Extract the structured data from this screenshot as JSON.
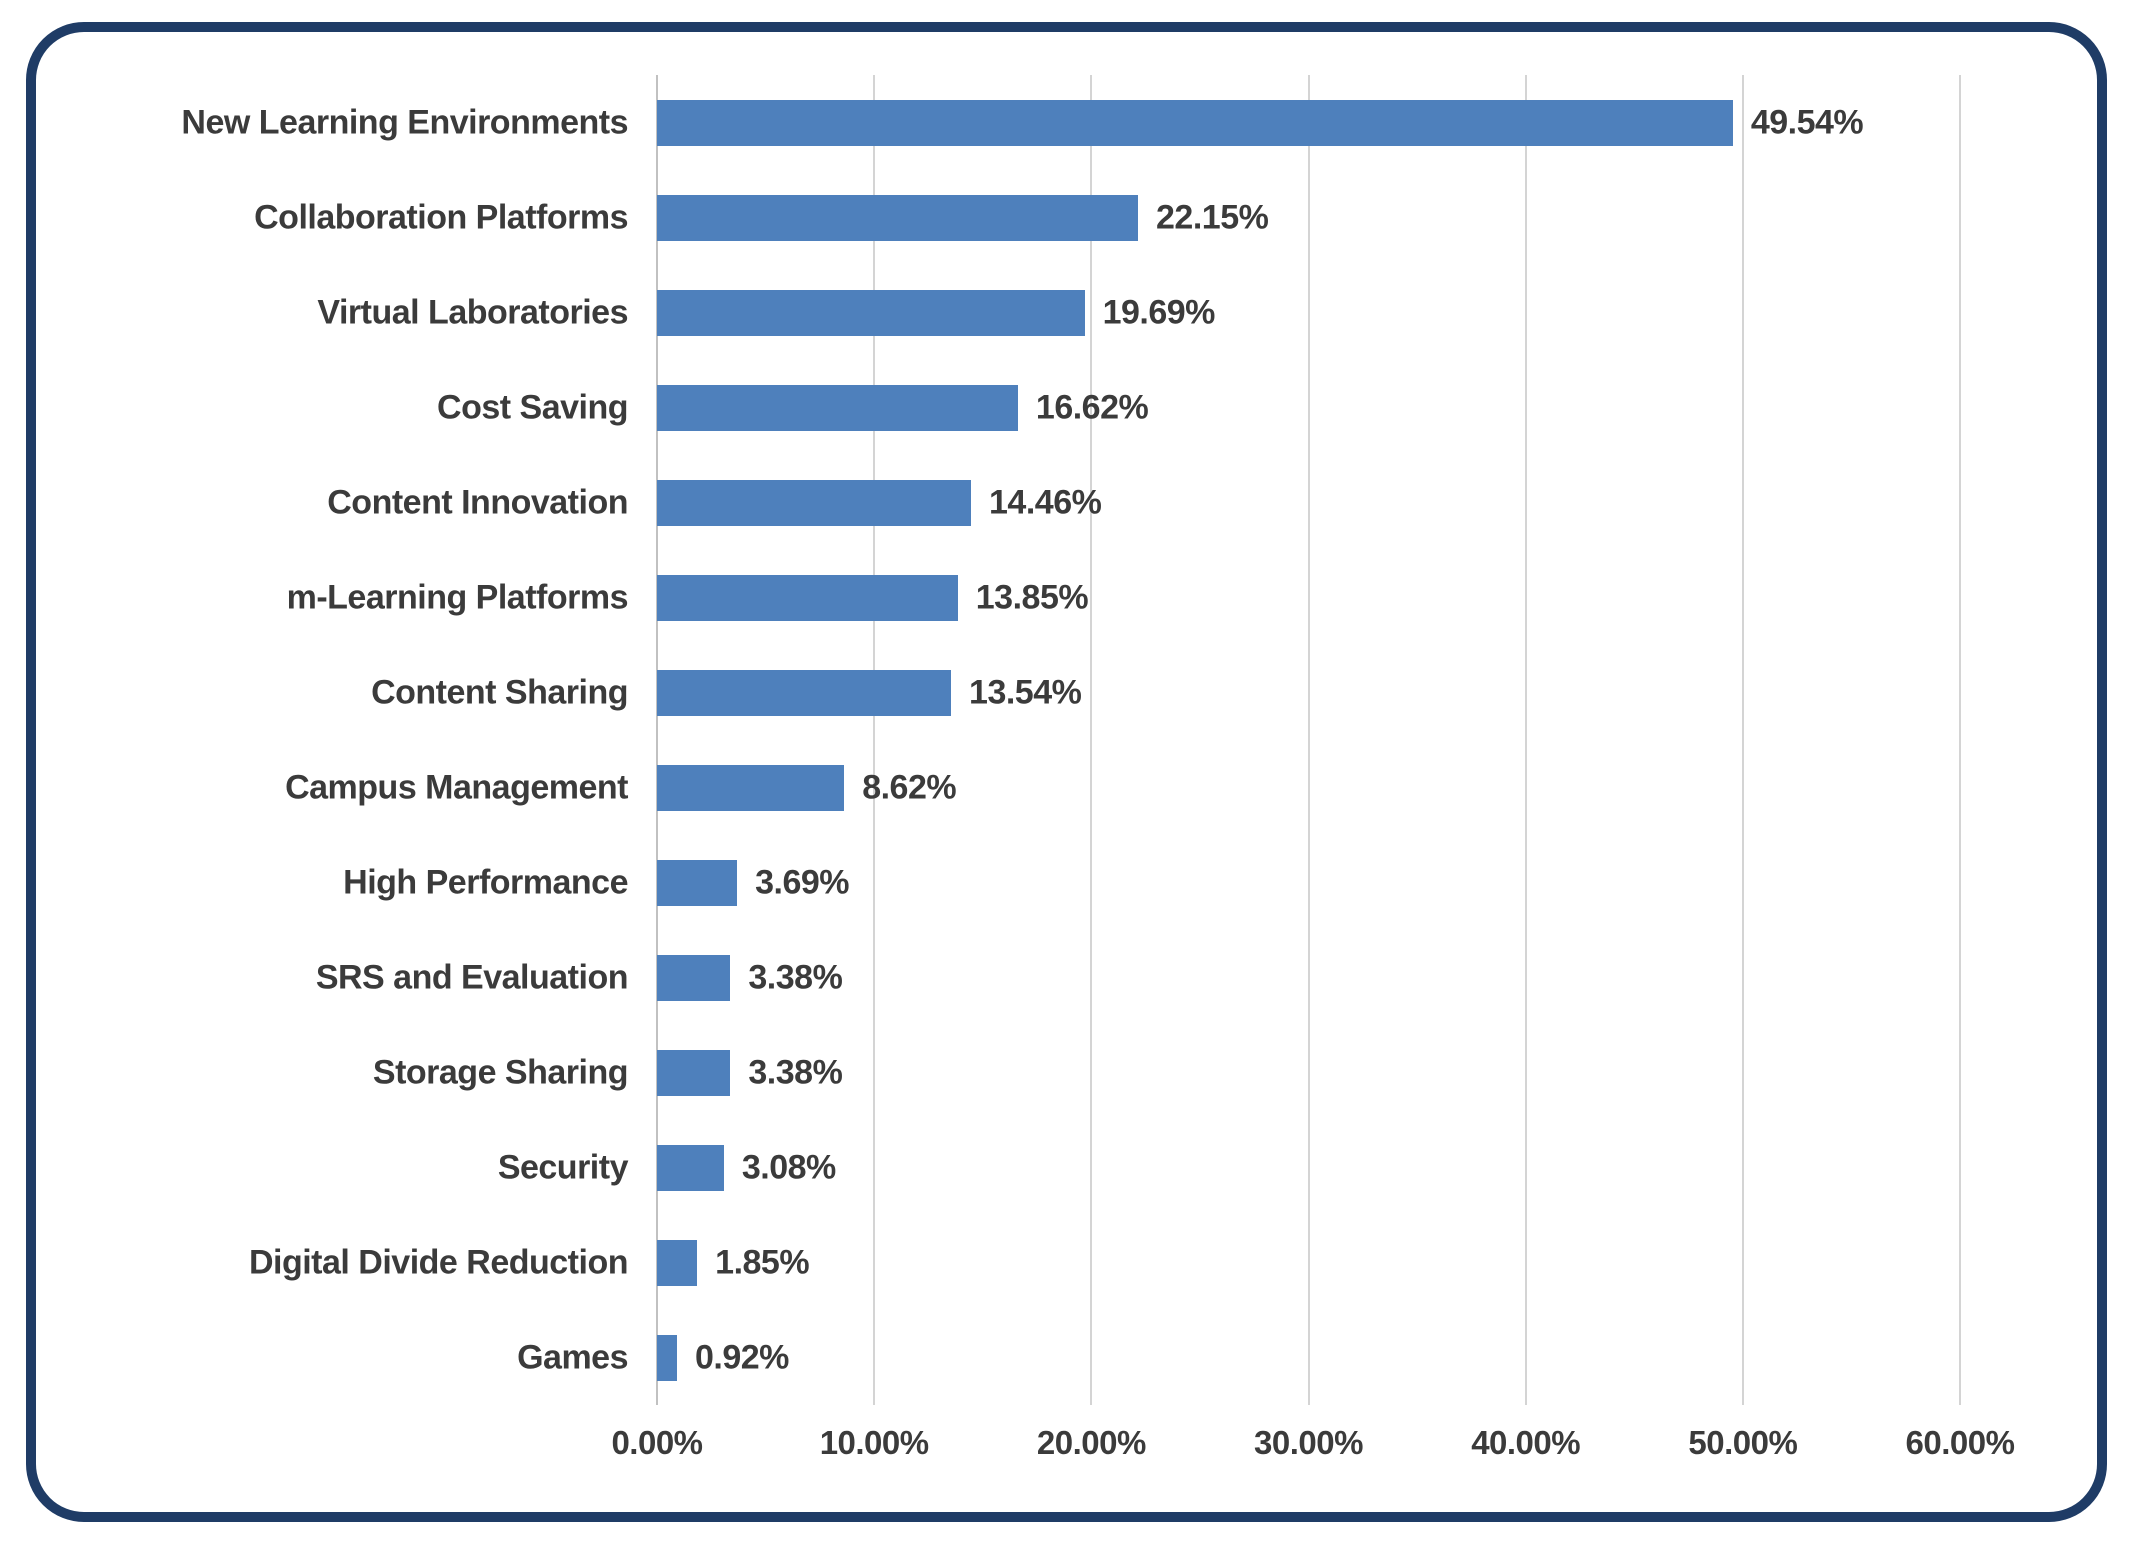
{
  "chart_data": {
    "type": "bar",
    "orientation": "horizontal",
    "title": "",
    "xlabel": "",
    "ylabel": "",
    "categories": [
      "New Learning Environments",
      "Collaboration Platforms",
      "Virtual Laboratories",
      "Cost Saving",
      "Content Innovation",
      "m-Learning Platforms",
      "Content Sharing",
      "Campus Management",
      "High Performance",
      "SRS and Evaluation",
      "Storage Sharing",
      "Security",
      "Digital Divide Reduction",
      "Games"
    ],
    "values": [
      49.54,
      22.15,
      19.69,
      16.62,
      14.46,
      13.85,
      13.54,
      8.62,
      3.69,
      3.38,
      3.38,
      3.08,
      1.85,
      0.92
    ],
    "value_labels": [
      "49.54%",
      "22.15%",
      "19.69%",
      "16.62%",
      "14.46%",
      "13.85%",
      "13.54%",
      "8.62%",
      "3.69%",
      "3.38%",
      "3.38%",
      "3.08%",
      "1.85%",
      "0.92%"
    ],
    "xlim": [
      0,
      60
    ],
    "x_tick_values": [
      0,
      10,
      20,
      30,
      40,
      50,
      60
    ],
    "x_ticks": [
      "0.00%",
      "10.00%",
      "20.00%",
      "30.00%",
      "40.00%",
      "50.00%",
      "60.00%"
    ],
    "grid": "vertical-gridlines-on",
    "legend": "none",
    "colors": {
      "bar": "#4e80bc",
      "frame_border": "#1f3c66",
      "gridline": "#d4d4d4",
      "axis_line": "#c1c1c1",
      "text": "#3b3b3b"
    }
  }
}
